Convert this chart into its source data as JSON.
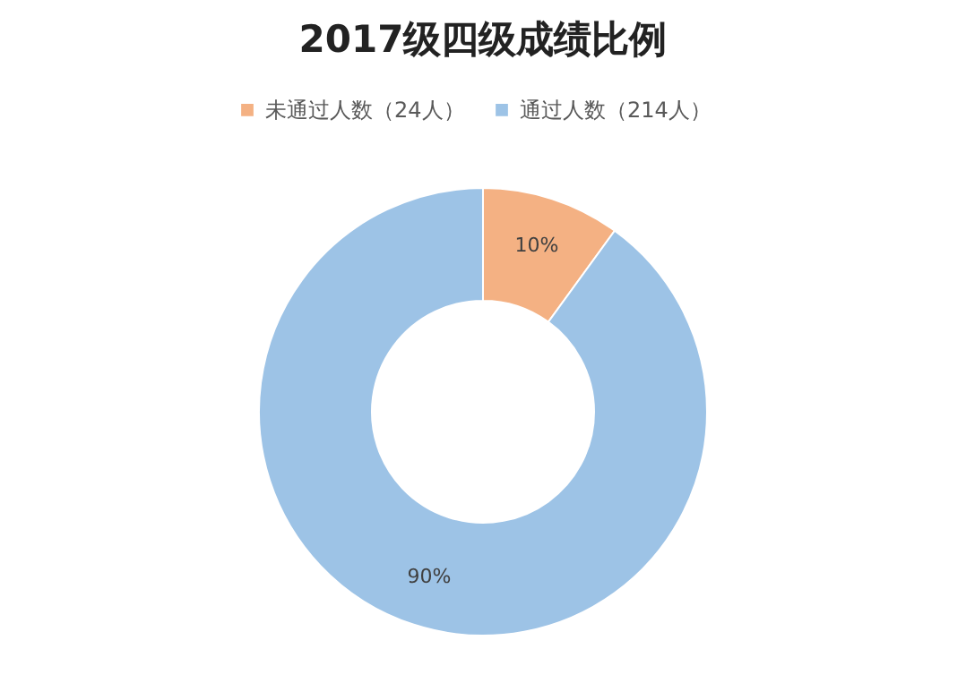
{
  "chart_data": {
    "type": "donut",
    "title": "2017级四级成绩比例",
    "categories": [
      "未通过人数（24人）",
      "通过人数（214人）"
    ],
    "values": [
      10,
      90
    ],
    "colors": [
      "#f4b183",
      "#9dc3e6"
    ],
    "value_labels": [
      "10%",
      "90%"
    ],
    "legend": "top"
  }
}
